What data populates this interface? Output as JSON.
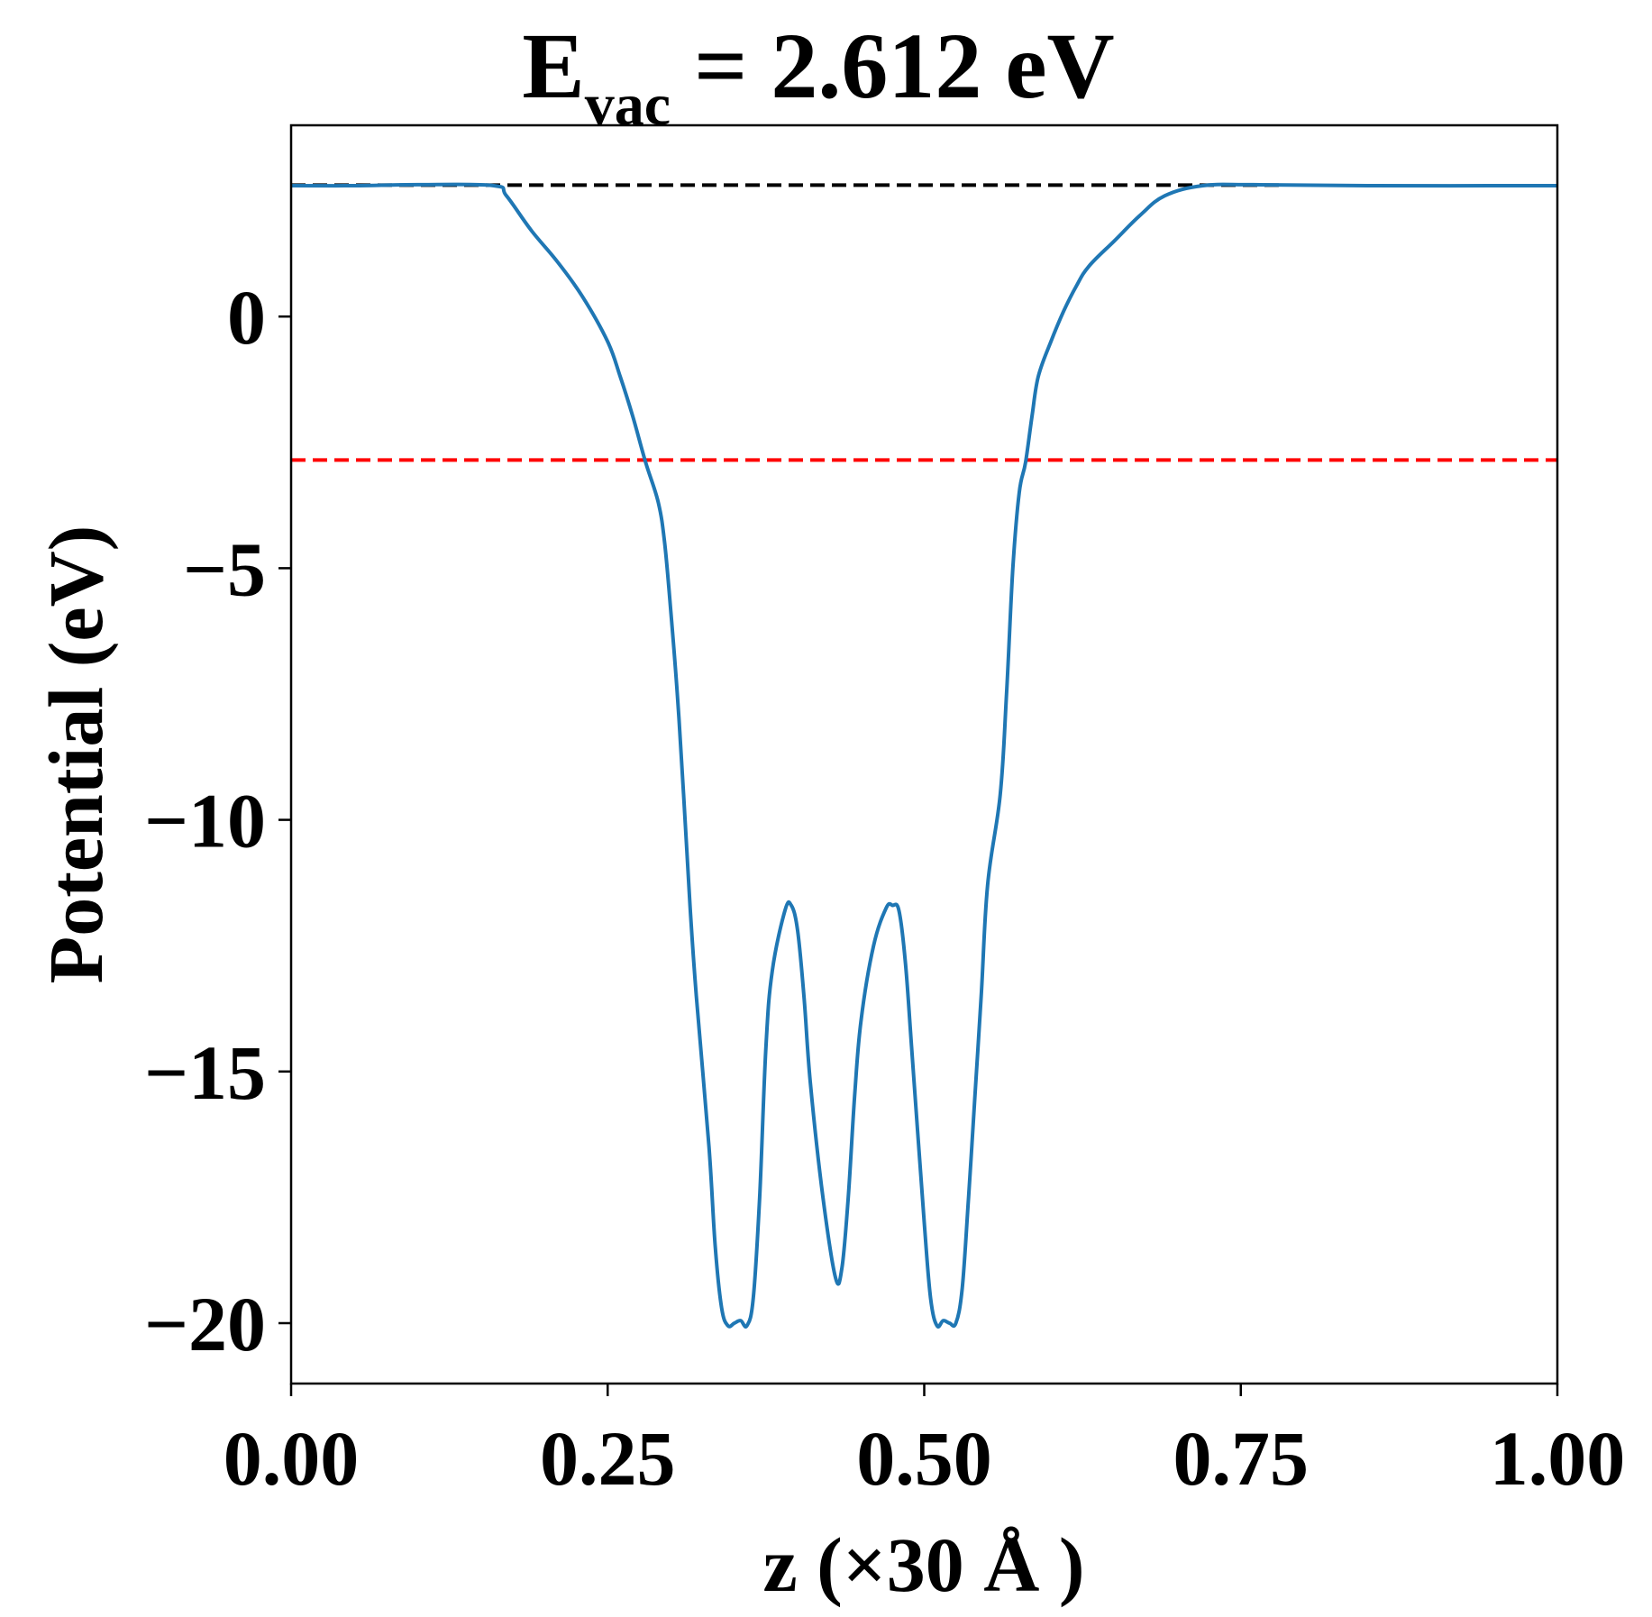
{
  "chart_data": {
    "type": "line",
    "title": {
      "prefix": "E",
      "subscript": "vac",
      "suffix": " = 2.612 eV"
    },
    "xlabel": "z (×30 Å )",
    "ylabel": "Potential (eV)",
    "xlim": [
      0.0,
      1.0
    ],
    "ylim": [
      -21.2,
      3.8
    ],
    "x_ticks": [
      0.0,
      0.25,
      0.5,
      0.75,
      1.0
    ],
    "x_tick_labels": [
      "0.00",
      "0.25",
      "0.50",
      "0.75",
      "1.00"
    ],
    "y_ticks": [
      0,
      -5,
      -10,
      -15,
      -20
    ],
    "y_tick_labels": [
      "0",
      "−5",
      "−10",
      "−15",
      "−20"
    ],
    "grid": false,
    "legend": "none",
    "reference_lines": [
      {
        "y": 2.612,
        "x_range": [
          0.0,
          0.78
        ],
        "color": "#000000",
        "style": "dashed"
      },
      {
        "y": -2.85,
        "x_range": [
          0.0,
          1.0
        ],
        "color": "#ff0000",
        "style": "dashed"
      }
    ],
    "series": [
      {
        "color": "#1f77b4",
        "x": [
          0.0,
          0.05,
          0.1,
          0.16,
          0.17,
          0.19,
          0.21,
          0.23,
          0.25,
          0.26,
          0.27,
          0.28,
          0.29,
          0.295,
          0.3,
          0.305,
          0.31,
          0.315,
          0.32,
          0.33,
          0.335,
          0.34,
          0.345,
          0.35,
          0.355,
          0.36,
          0.365,
          0.37,
          0.375,
          0.38,
          0.39,
          0.395,
          0.4,
          0.405,
          0.41,
          0.42,
          0.43,
          0.435,
          0.44,
          0.445,
          0.45,
          0.46,
          0.47,
          0.475,
          0.48,
          0.485,
          0.49,
          0.5,
          0.505,
          0.51,
          0.515,
          0.52,
          0.525,
          0.53,
          0.535,
          0.54,
          0.545,
          0.55,
          0.56,
          0.565,
          0.57,
          0.575,
          0.58,
          0.585,
          0.59,
          0.6,
          0.61,
          0.62,
          0.63,
          0.65,
          0.67,
          0.69,
          0.72,
          0.76,
          0.85,
          1.0
        ],
        "y": [
          2.6,
          2.6,
          2.62,
          2.6,
          2.4,
          1.7,
          1.1,
          0.4,
          -0.5,
          -1.2,
          -2.0,
          -2.9,
          -3.7,
          -4.5,
          -5.9,
          -7.5,
          -9.5,
          -11.7,
          -13.5,
          -16.5,
          -18.5,
          -19.7,
          -20.05,
          -20.0,
          -19.95,
          -20.05,
          -19.5,
          -17.5,
          -14.5,
          -13.0,
          -11.8,
          -11.7,
          -12.2,
          -13.5,
          -15.2,
          -17.5,
          -19.1,
          -18.9,
          -17.5,
          -15.5,
          -14.0,
          -12.5,
          -11.75,
          -11.7,
          -11.8,
          -12.8,
          -14.5,
          -18.0,
          -19.5,
          -20.05,
          -19.95,
          -20.0,
          -20.0,
          -19.3,
          -17.5,
          -15.5,
          -13.5,
          -11.3,
          -9.5,
          -7.5,
          -5.0,
          -3.5,
          -2.9,
          -2.0,
          -1.2,
          -0.5,
          0.1,
          0.6,
          1.0,
          1.5,
          2.0,
          2.4,
          2.6,
          2.62,
          2.6,
          2.6
        ]
      }
    ]
  }
}
